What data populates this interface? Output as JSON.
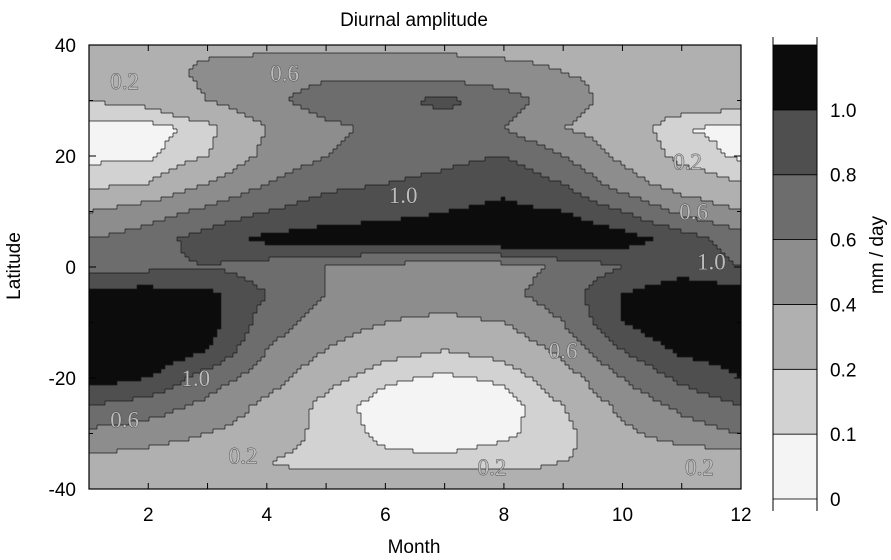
{
  "chart_data": {
    "type": "heatmap",
    "title": "Diurnal amplitude",
    "xlabel": "Month",
    "ylabel": "Latitude",
    "colorbar_label": "mm / day",
    "xlim": [
      1,
      12
    ],
    "ylim": [
      -40,
      40
    ],
    "x_ticks": [
      2,
      4,
      6,
      8,
      10,
      12
    ],
    "y_ticks": [
      40,
      20,
      0,
      -20,
      -40
    ],
    "x_grid": [
      1,
      2,
      3,
      4,
      5,
      6,
      7,
      8,
      9,
      10,
      11,
      12
    ],
    "y_grid": [
      -40,
      -35,
      -30,
      -25,
      -20,
      -15,
      -10,
      -5,
      0,
      5,
      10,
      15,
      20,
      25,
      30,
      35,
      40
    ],
    "z": [
      [
        0.25,
        0.25,
        0.25,
        0.25,
        0.3,
        0.35,
        0.35,
        0.3,
        0.25,
        0.25,
        0.25,
        0.25
      ],
      [
        0.35,
        0.3,
        0.25,
        0.2,
        0.15,
        0.12,
        0.12,
        0.15,
        0.2,
        0.25,
        0.25,
        0.25
      ],
      [
        0.55,
        0.5,
        0.4,
        0.3,
        0.15,
        0.08,
        0.05,
        0.08,
        0.15,
        0.35,
        0.5,
        0.6
      ],
      [
        0.8,
        0.7,
        0.55,
        0.35,
        0.15,
        0.05,
        0.03,
        0.05,
        0.2,
        0.45,
        0.65,
        0.8
      ],
      [
        1.1,
        1.0,
        0.7,
        0.5,
        0.25,
        0.12,
        0.08,
        0.12,
        0.3,
        0.6,
        0.85,
        1.0
      ],
      [
        1.2,
        1.2,
        1.0,
        0.6,
        0.4,
        0.25,
        0.2,
        0.25,
        0.45,
        0.8,
        1.05,
        1.1
      ],
      [
        1.2,
        1.2,
        1.1,
        0.7,
        0.5,
        0.4,
        0.35,
        0.4,
        0.6,
        1.0,
        1.2,
        1.2
      ],
      [
        1.1,
        1.1,
        1.05,
        0.8,
        0.6,
        0.5,
        0.5,
        0.55,
        0.7,
        1.0,
        1.15,
        1.1
      ],
      [
        0.7,
        0.75,
        0.8,
        0.7,
        0.6,
        0.55,
        0.45,
        0.5,
        0.65,
        0.8,
        0.9,
        0.8
      ],
      [
        0.6,
        0.7,
        0.9,
        1.05,
        1.1,
        1.1,
        1.1,
        1.2,
        1.2,
        1.1,
        0.9,
        0.7
      ],
      [
        0.4,
        0.5,
        0.65,
        0.8,
        0.9,
        0.95,
        1.0,
        1.05,
        1.0,
        0.8,
        0.55,
        0.4
      ],
      [
        0.15,
        0.2,
        0.4,
        0.6,
        0.75,
        0.8,
        0.85,
        0.95,
        0.8,
        0.5,
        0.3,
        0.2
      ],
      [
        0.08,
        0.08,
        0.2,
        0.45,
        0.6,
        0.7,
        0.75,
        0.8,
        0.6,
        0.35,
        0.15,
        0.08
      ],
      [
        0.05,
        0.05,
        0.15,
        0.4,
        0.55,
        0.65,
        0.7,
        0.6,
        0.4,
        0.3,
        0.1,
        0.08
      ],
      [
        0.2,
        0.25,
        0.4,
        0.55,
        0.7,
        0.75,
        0.85,
        0.7,
        0.5,
        0.3,
        0.3,
        0.25
      ],
      [
        0.25,
        0.3,
        0.45,
        0.5,
        0.55,
        0.55,
        0.5,
        0.45,
        0.4,
        0.35,
        0.3,
        0.28
      ],
      [
        0.3,
        0.35,
        0.35,
        0.35,
        0.35,
        0.35,
        0.35,
        0.35,
        0.35,
        0.35,
        0.35,
        0.3
      ]
    ],
    "levels": [
      0,
      0.1,
      0.2,
      0.4,
      0.6,
      0.8,
      1.0
    ],
    "colorbar_ticks": [
      "0",
      "0.1",
      "0.2",
      "0.4",
      "0.6",
      "0.8",
      "1.0"
    ],
    "band_colors": [
      "#f4f4f4",
      "#d2d2d2",
      "#b0b0b0",
      "#8d8d8d",
      "#6d6d6d",
      "#4f4f4f",
      "#0c0c0c"
    ],
    "contour_labels": [
      {
        "text": "0.2",
        "x": 1.6,
        "y": 33.5
      },
      {
        "text": "0.6",
        "x": 4.3,
        "y": 35
      },
      {
        "text": "1.0",
        "x": 6.3,
        "y": 13
      },
      {
        "text": "0.2",
        "x": 11.1,
        "y": 19
      },
      {
        "text": "0.6",
        "x": 11.2,
        "y": 10
      },
      {
        "text": "1.0",
        "x": 11.5,
        "y": 1
      },
      {
        "text": "0.6",
        "x": 9.0,
        "y": -15
      },
      {
        "text": "1.0",
        "x": 2.8,
        "y": -20
      },
      {
        "text": "0.6",
        "x": 1.6,
        "y": -27.5
      },
      {
        "text": "0.2",
        "x": 3.6,
        "y": -34
      },
      {
        "text": "0.2",
        "x": 7.8,
        "y": -36
      },
      {
        "text": "0.2",
        "x": 11.3,
        "y": -36
      }
    ]
  }
}
